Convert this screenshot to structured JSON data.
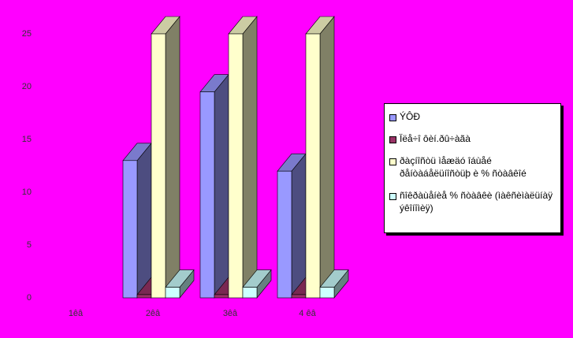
{
  "chart_data": {
    "type": "bar3d",
    "categories": [
      "1êâ",
      "2êâ",
      "3êâ",
      "4 êâ"
    ],
    "series": [
      {
        "name": "ÝÔÐ",
        "color": "#9999ff",
        "values": [
          null,
          13,
          19.5,
          12
        ]
      },
      {
        "name": "Ïëå÷î ôèí.ðû÷àãà",
        "color": "#993366",
        "values": [
          null,
          0.3,
          0.3,
          0.3
        ]
      },
      {
        "name": "ðàçíîñòü ìåæäó îáùåé ðåíòàáåëüíîñòüþ è % ñòàâêîé",
        "color": "#ffffcc",
        "values": [
          null,
          25,
          25,
          25
        ]
      },
      {
        "name": "ñîêðàùåíèå % ñòàâêè (ìàêñèìàëüíàÿ ýêîíîìèÿ)",
        "color": "#ccffff",
        "values": [
          null,
          1,
          1,
          1
        ]
      }
    ],
    "ylim": [
      0,
      25
    ],
    "yticks": [
      0,
      5,
      10,
      15,
      20,
      25
    ],
    "background": "#ff00ff"
  }
}
